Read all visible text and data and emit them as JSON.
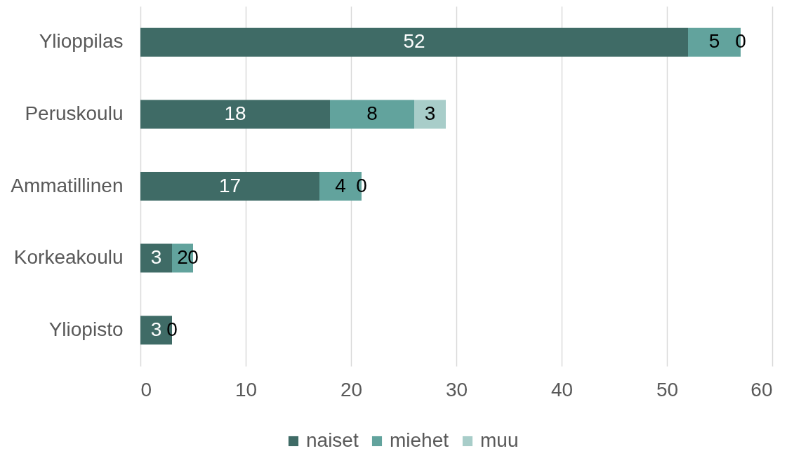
{
  "chart_data": {
    "type": "bar",
    "orientation": "horizontal",
    "stacked": true,
    "categories": [
      "Ylioppilas",
      "Peruskoulu",
      "Ammatillinen",
      "Korkeakoulu",
      "Yliopisto"
    ],
    "series": [
      {
        "name": "naiset",
        "color": "#3f6b66",
        "values": [
          52,
          18,
          17,
          3,
          3
        ],
        "value_labels": [
          "52",
          "18",
          "17",
          "3",
          "3"
        ]
      },
      {
        "name": "miehet",
        "color": "#62a39d",
        "values": [
          5,
          8,
          4,
          2,
          0
        ],
        "value_labels": [
          "5",
          "8",
          "4",
          "2",
          "0"
        ]
      },
      {
        "name": "muu",
        "color": "#a8cdc9",
        "values": [
          0,
          3,
          0,
          0,
          0
        ],
        "value_labels": [
          "0",
          "3",
          "0",
          "0",
          null
        ]
      }
    ],
    "xlim": [
      0,
      60
    ],
    "xticks": [
      0,
      10,
      20,
      30,
      40,
      50,
      60
    ],
    "grid": "x",
    "legend": "bottom"
  }
}
